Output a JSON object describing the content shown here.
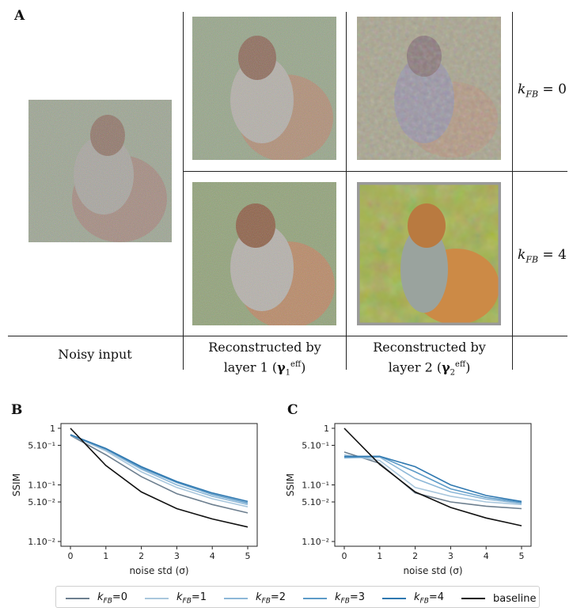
{
  "panel_a": {
    "letter": "A",
    "captions": {
      "noisy": "Noisy input",
      "layer1_line1": "Reconstructed by",
      "layer1_line2": "layer 1 (γ1eff)",
      "layer2_line1": "Reconstructed by",
      "layer2_line2": "layer 2 (γ2eff)"
    },
    "row_labels": [
      {
        "k": "k",
        "sub": "FB",
        "rest": " = 0"
      },
      {
        "k": "k",
        "sub": "FB",
        "rest": " = 4"
      }
    ]
  },
  "colors": {
    "k0": "#6d7f8f",
    "k1": "#a9c7dd",
    "k2": "#8db8d8",
    "k3": "#5d9bc8",
    "k4": "#2f78b0",
    "baseline": "#111111"
  },
  "legend": [
    {
      "name": "k",
      "sub": "FB",
      "rest": "=0",
      "key": "k0"
    },
    {
      "name": "k",
      "sub": "FB",
      "rest": "=1",
      "key": "k1"
    },
    {
      "name": "k",
      "sub": "FB",
      "rest": "=2",
      "key": "k2"
    },
    {
      "name": "k",
      "sub": "FB",
      "rest": "=3",
      "key": "k3"
    },
    {
      "name": "k",
      "sub": "FB",
      "rest": "=4",
      "key": "k4"
    },
    {
      "name": "baseline",
      "sub": "",
      "rest": "",
      "key": "baseline"
    }
  ],
  "chart_data": [
    {
      "panel": "B",
      "type": "line",
      "xlabel": "noise std (σ)",
      "ylabel": "SSIM",
      "yscale": "log",
      "ylim": [
        0.01,
        1
      ],
      "xlim": [
        0,
        5
      ],
      "yticks": [
        "1",
        "5.10⁻¹",
        "1.10⁻¹",
        "5.10⁻²",
        "1.10⁻²"
      ],
      "ytick_values": [
        1,
        0.5,
        0.1,
        0.05,
        0.01
      ],
      "xticks": [
        "0",
        "1",
        "2",
        "3",
        "4",
        "5"
      ],
      "x": [
        0,
        1,
        2,
        3,
        4,
        5
      ],
      "series": [
        {
          "name": "kFB=0",
          "key": "k0",
          "values": [
            0.75,
            0.34,
            0.14,
            0.07,
            0.045,
            0.032
          ]
        },
        {
          "name": "kFB=1",
          "key": "k1",
          "values": [
            0.76,
            0.4,
            0.17,
            0.09,
            0.057,
            0.041
          ]
        },
        {
          "name": "kFB=2",
          "key": "k2",
          "values": [
            0.76,
            0.42,
            0.19,
            0.1,
            0.063,
            0.045
          ]
        },
        {
          "name": "kFB=3",
          "key": "k3",
          "values": [
            0.77,
            0.43,
            0.2,
            0.11,
            0.068,
            0.048
          ]
        },
        {
          "name": "kFB=4",
          "key": "k4",
          "values": [
            0.77,
            0.44,
            0.21,
            0.115,
            0.072,
            0.051
          ]
        },
        {
          "name": "baseline",
          "key": "baseline",
          "values": [
            1.0,
            0.22,
            0.075,
            0.038,
            0.025,
            0.018
          ]
        }
      ]
    },
    {
      "panel": "C",
      "type": "line",
      "xlabel": "noise std (σ)",
      "ylabel": "SSIM",
      "yscale": "log",
      "ylim": [
        0.01,
        1
      ],
      "xlim": [
        0,
        5
      ],
      "yticks": [
        "1",
        "5.10⁻¹",
        "1.10⁻¹",
        "5.10⁻²",
        "1.10⁻²"
      ],
      "ytick_values": [
        1,
        0.5,
        0.1,
        0.05,
        0.01
      ],
      "xticks": [
        "0",
        "1",
        "2",
        "3",
        "4",
        "5"
      ],
      "x": [
        0,
        1,
        2,
        3,
        4,
        5
      ],
      "series": [
        {
          "name": "kFB=0",
          "key": "k0",
          "values": [
            0.38,
            0.24,
            0.072,
            0.05,
            0.042,
            0.038
          ]
        },
        {
          "name": "kFB=1",
          "key": "k1",
          "values": [
            0.34,
            0.27,
            0.09,
            0.063,
            0.05,
            0.045
          ]
        },
        {
          "name": "kFB=2",
          "key": "k2",
          "values": [
            0.3,
            0.31,
            0.13,
            0.075,
            0.056,
            0.047
          ]
        },
        {
          "name": "kFB=3",
          "key": "k3",
          "values": [
            0.31,
            0.32,
            0.17,
            0.085,
            0.06,
            0.049
          ]
        },
        {
          "name": "kFB=4",
          "key": "k4",
          "values": [
            0.32,
            0.32,
            0.21,
            0.1,
            0.065,
            0.051
          ]
        },
        {
          "name": "baseline",
          "key": "baseline",
          "values": [
            1.0,
            0.23,
            0.075,
            0.04,
            0.026,
            0.019
          ]
        }
      ]
    }
  ],
  "panel_b_letter": "B",
  "panel_c_letter": "C"
}
